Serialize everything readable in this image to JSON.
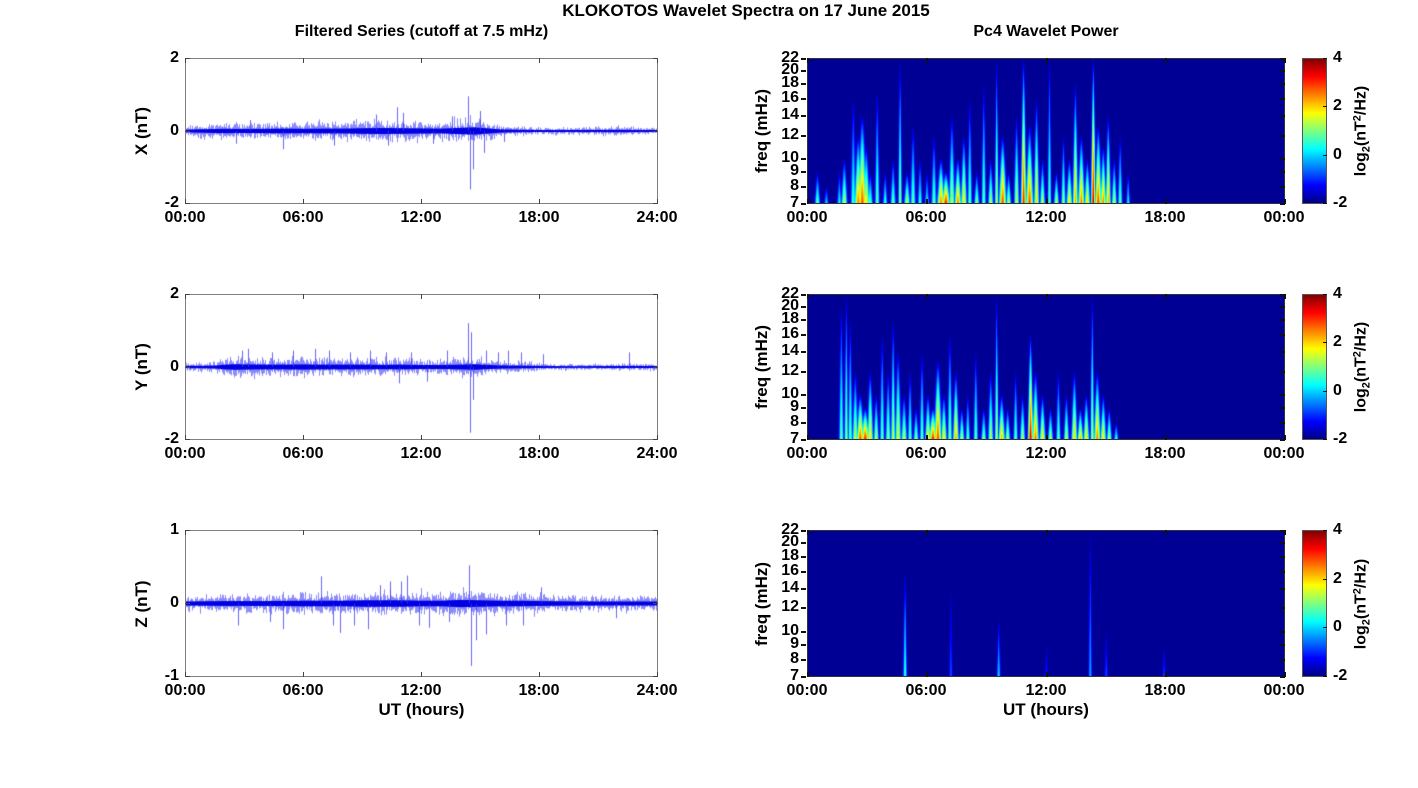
{
  "figure": {
    "title": "KLOKOTOS Wavelet Spectra on 17 June 2015",
    "left_title": "Filtered Series (cutoff at 7.5 mHz)",
    "right_title": "Pc4 Wavelet Power",
    "xlabel": "UT (hours)",
    "background": "#ffffff",
    "line_color": "#0000ee",
    "spectrogram_background": "#000090",
    "colorbar": {
      "tick_values": [
        4,
        2,
        0,
        -2
      ],
      "range": [
        -2,
        4
      ],
      "label_parts": {
        "base1": "log",
        "sub": "2",
        "base2": "(nT",
        "sup": "2",
        "base3": "/Hz)"
      }
    }
  },
  "chart_data": [
    {
      "id": "series_x",
      "type": "line",
      "title": "Filtered Series (cutoff at 7.5 mHz)",
      "ylabel": "X (nT)",
      "xlabel": "",
      "ylim": [
        -2,
        2
      ],
      "yticks": [
        2,
        0,
        -2
      ],
      "x_hours": [
        0,
        24
      ],
      "xticks": [
        "00:00",
        "06:00",
        "12:00",
        "18:00",
        "24:00"
      ],
      "color": "#0000ee",
      "seed": 11,
      "noise_envelope": [
        [
          0,
          0.06
        ],
        [
          0.5,
          0.08
        ],
        [
          1,
          0.09
        ],
        [
          2,
          0.11
        ],
        [
          3,
          0.1
        ],
        [
          4,
          0.11
        ],
        [
          5,
          0.12
        ],
        [
          6,
          0.11
        ],
        [
          7,
          0.12
        ],
        [
          8,
          0.12
        ],
        [
          9,
          0.14
        ],
        [
          10,
          0.15
        ],
        [
          11,
          0.14
        ],
        [
          12,
          0.13
        ],
        [
          13,
          0.12
        ],
        [
          14,
          0.16
        ],
        [
          14.7,
          0.18
        ],
        [
          15.5,
          0.12
        ],
        [
          16,
          0.08
        ],
        [
          17,
          0.06
        ],
        [
          18,
          0.05
        ],
        [
          20,
          0.05
        ],
        [
          22,
          0.06
        ],
        [
          23,
          0.05
        ],
        [
          24,
          0.05
        ]
      ],
      "spikes": [
        [
          2.6,
          -0.35
        ],
        [
          3.3,
          0.3
        ],
        [
          5.0,
          -0.5
        ],
        [
          7.6,
          -0.4
        ],
        [
          9.7,
          0.45
        ],
        [
          10.3,
          -0.4
        ],
        [
          10.8,
          0.65
        ],
        [
          11.1,
          0.5
        ],
        [
          12.6,
          -0.35
        ],
        [
          13.6,
          0.4
        ],
        [
          14.4,
          0.95
        ],
        [
          14.5,
          -1.6
        ],
        [
          14.65,
          -1.05
        ],
        [
          15.0,
          0.55
        ],
        [
          15.2,
          -0.6
        ],
        [
          16.2,
          -0.3
        ]
      ]
    },
    {
      "id": "series_y",
      "type": "line",
      "title": "",
      "ylabel": "Y (nT)",
      "xlabel": "",
      "ylim": [
        -2,
        2
      ],
      "yticks": [
        2,
        0,
        -2
      ],
      "x_hours": [
        0,
        24
      ],
      "xticks": [
        "00:00",
        "06:00",
        "12:00",
        "18:00",
        "24:00"
      ],
      "color": "#0000ee",
      "seed": 23,
      "noise_envelope": [
        [
          0,
          0.06
        ],
        [
          1,
          0.06
        ],
        [
          1.6,
          0.08
        ],
        [
          2,
          0.12
        ],
        [
          2.5,
          0.14
        ],
        [
          3,
          0.13
        ],
        [
          4,
          0.12
        ],
        [
          5,
          0.12
        ],
        [
          6,
          0.13
        ],
        [
          7,
          0.12
        ],
        [
          8,
          0.12
        ],
        [
          9,
          0.12
        ],
        [
          10,
          0.11
        ],
        [
          11,
          0.12
        ],
        [
          12,
          0.1
        ],
        [
          13,
          0.1
        ],
        [
          14,
          0.12
        ],
        [
          14.7,
          0.14
        ],
        [
          15.5,
          0.1
        ],
        [
          16,
          0.08
        ],
        [
          17,
          0.07
        ],
        [
          18,
          0.05
        ],
        [
          20,
          0.04
        ],
        [
          22,
          0.05
        ],
        [
          24,
          0.05
        ]
      ],
      "spikes": [
        [
          2.9,
          0.45
        ],
        [
          3.2,
          0.5
        ],
        [
          4.4,
          0.4
        ],
        [
          5.5,
          0.45
        ],
        [
          6.6,
          0.5
        ],
        [
          7.3,
          0.45
        ],
        [
          8.4,
          0.4
        ],
        [
          9.4,
          0.45
        ],
        [
          10.2,
          0.4
        ],
        [
          10.9,
          -0.45
        ],
        [
          11.5,
          0.4
        ],
        [
          12.3,
          -0.4
        ],
        [
          13.3,
          0.45
        ],
        [
          14.4,
          1.2
        ],
        [
          14.5,
          -1.8
        ],
        [
          14.55,
          0.95
        ],
        [
          14.65,
          -0.9
        ],
        [
          15.3,
          0.45
        ],
        [
          15.9,
          0.4
        ],
        [
          16.4,
          0.45
        ],
        [
          17.1,
          0.4
        ],
        [
          18.2,
          0.35
        ],
        [
          22.6,
          0.4
        ]
      ]
    },
    {
      "id": "series_z",
      "type": "line",
      "title": "",
      "ylabel": "Z (nT)",
      "xlabel": "UT (hours)",
      "ylim": [
        -1,
        1
      ],
      "yticks": [
        1,
        0,
        -1
      ],
      "x_hours": [
        0,
        24
      ],
      "xticks": [
        "00:00",
        "06:00",
        "12:00",
        "18:00",
        "24:00"
      ],
      "color": "#0000ee",
      "seed": 37,
      "noise_envelope": [
        [
          0,
          0.05
        ],
        [
          2,
          0.06
        ],
        [
          4,
          0.06
        ],
        [
          6,
          0.07
        ],
        [
          7,
          0.07
        ],
        [
          8,
          0.07
        ],
        [
          9,
          0.08
        ],
        [
          10,
          0.08
        ],
        [
          11,
          0.08
        ],
        [
          12,
          0.07
        ],
        [
          13,
          0.07
        ],
        [
          14,
          0.09
        ],
        [
          15,
          0.08
        ],
        [
          16,
          0.07
        ],
        [
          17,
          0.07
        ],
        [
          18,
          0.06
        ],
        [
          20,
          0.05
        ],
        [
          22,
          0.05
        ],
        [
          24,
          0.05
        ]
      ],
      "spikes": [
        [
          2.7,
          -0.3
        ],
        [
          4.3,
          -0.25
        ],
        [
          5.0,
          -0.35
        ],
        [
          6.9,
          0.37
        ],
        [
          7.5,
          -0.3
        ],
        [
          7.9,
          -0.4
        ],
        [
          8.6,
          -0.3
        ],
        [
          9.3,
          -0.35
        ],
        [
          9.9,
          0.25
        ],
        [
          10.4,
          0.3
        ],
        [
          11.0,
          0.3
        ],
        [
          11.3,
          0.38
        ],
        [
          11.9,
          -0.3
        ],
        [
          12.4,
          -0.33
        ],
        [
          13.4,
          -0.25
        ],
        [
          14.45,
          0.52
        ],
        [
          14.55,
          -0.85
        ],
        [
          14.8,
          -0.5
        ],
        [
          15.3,
          -0.42
        ],
        [
          16.3,
          -0.3
        ],
        [
          17.2,
          -0.3
        ],
        [
          18.1,
          0.22
        ],
        [
          21.9,
          -0.2
        ]
      ]
    },
    {
      "id": "wavelet_x",
      "type": "heatmap",
      "title": "Pc4 Wavelet Power",
      "ylabel": "freq (mHz)",
      "xlabel": "",
      "ylim": [
        7,
        22
      ],
      "yscale": "log",
      "yticks": [
        22,
        20,
        18,
        16,
        14,
        12,
        10,
        9,
        8,
        7
      ],
      "x_hours": [
        0,
        24
      ],
      "xticks": [
        "00:00",
        "06:00",
        "12:00",
        "18:00",
        "00:00"
      ],
      "value_label": "log2(nT2/Hz)",
      "value_range": [
        -2,
        4
      ],
      "colormap": "jet",
      "events_format": [
        "t_hours",
        "f_top_mHz",
        "intensity_0to1",
        "sigma_hours"
      ],
      "events": [
        [
          0.5,
          9,
          0.5,
          0.07
        ],
        [
          0.95,
          8,
          0.35,
          0.06
        ],
        [
          1.6,
          9,
          0.4,
          0.06
        ],
        [
          1.85,
          10,
          0.6,
          0.08
        ],
        [
          2.3,
          16,
          0.45,
          0.07
        ],
        [
          2.55,
          12,
          0.8,
          0.1
        ],
        [
          2.75,
          14,
          0.85,
          0.11
        ],
        [
          2.95,
          11,
          0.7,
          0.09
        ],
        [
          3.15,
          9,
          0.5,
          0.07
        ],
        [
          3.5,
          17,
          0.5,
          0.06
        ],
        [
          3.9,
          9,
          0.45,
          0.06
        ],
        [
          4.3,
          10,
          0.5,
          0.07
        ],
        [
          4.65,
          22,
          0.55,
          0.05
        ],
        [
          5.0,
          9,
          0.6,
          0.08
        ],
        [
          5.3,
          13,
          0.5,
          0.07
        ],
        [
          5.65,
          10,
          0.45,
          0.06
        ],
        [
          6.0,
          9,
          0.4,
          0.06
        ],
        [
          6.35,
          12,
          0.5,
          0.07
        ],
        [
          6.7,
          10,
          0.8,
          0.1
        ],
        [
          6.95,
          9,
          0.9,
          0.11
        ],
        [
          7.25,
          14,
          0.6,
          0.08
        ],
        [
          7.55,
          10,
          0.8,
          0.09
        ],
        [
          7.85,
          12,
          0.7,
          0.08
        ],
        [
          8.15,
          16,
          0.5,
          0.06
        ],
        [
          8.5,
          9,
          0.55,
          0.07
        ],
        [
          8.85,
          18,
          0.5,
          0.06
        ],
        [
          9.2,
          10,
          0.6,
          0.07
        ],
        [
          9.5,
          22,
          0.6,
          0.05
        ],
        [
          9.8,
          12,
          0.85,
          0.1
        ],
        [
          10.1,
          9,
          0.6,
          0.07
        ],
        [
          10.5,
          14,
          0.6,
          0.07
        ],
        [
          10.85,
          22,
          0.9,
          0.07
        ],
        [
          11.15,
          13,
          0.85,
          0.1
        ],
        [
          11.5,
          16,
          0.7,
          0.07
        ],
        [
          11.8,
          10,
          0.6,
          0.07
        ],
        [
          12.15,
          22,
          0.5,
          0.05
        ],
        [
          12.5,
          9,
          0.6,
          0.07
        ],
        [
          12.85,
          12,
          0.55,
          0.06
        ],
        [
          13.15,
          10,
          0.7,
          0.08
        ],
        [
          13.45,
          18,
          0.75,
          0.07
        ],
        [
          13.75,
          12,
          0.8,
          0.09
        ],
        [
          14.05,
          10,
          0.7,
          0.08
        ],
        [
          14.35,
          22,
          0.97,
          0.06
        ],
        [
          14.6,
          13,
          0.85,
          0.09
        ],
        [
          14.85,
          11,
          0.8,
          0.08
        ],
        [
          15.1,
          14,
          0.75,
          0.07
        ],
        [
          15.4,
          10,
          0.6,
          0.07
        ],
        [
          15.7,
          12,
          0.5,
          0.06
        ],
        [
          16.1,
          9,
          0.4,
          0.05
        ]
      ]
    },
    {
      "id": "wavelet_y",
      "type": "heatmap",
      "title": "",
      "ylabel": "freq (mHz)",
      "xlabel": "",
      "ylim": [
        7,
        22
      ],
      "yscale": "log",
      "yticks": [
        22,
        20,
        18,
        16,
        14,
        12,
        10,
        9,
        8,
        7
      ],
      "x_hours": [
        0,
        24
      ],
      "xticks": [
        "00:00",
        "06:00",
        "12:00",
        "18:00",
        "00:00"
      ],
      "value_label": "log2(nT2/Hz)",
      "value_range": [
        -2,
        4
      ],
      "colormap": "jet",
      "events_format": [
        "t_hours",
        "f_top_mHz",
        "intensity_0to1",
        "sigma_hours"
      ],
      "events": [
        [
          1.7,
          20,
          0.5,
          0.06
        ],
        [
          1.95,
          22,
          0.55,
          0.05
        ],
        [
          2.15,
          18,
          0.5,
          0.06
        ],
        [
          2.4,
          12,
          0.6,
          0.08
        ],
        [
          2.65,
          10,
          0.85,
          0.1
        ],
        [
          2.9,
          9,
          0.9,
          0.11
        ],
        [
          3.15,
          12,
          0.7,
          0.08
        ],
        [
          3.45,
          10,
          0.6,
          0.07
        ],
        [
          3.75,
          16,
          0.5,
          0.06
        ],
        [
          4.05,
          12,
          0.55,
          0.07
        ],
        [
          4.3,
          18,
          0.6,
          0.06
        ],
        [
          4.55,
          14,
          0.65,
          0.08
        ],
        [
          4.85,
          10,
          0.6,
          0.08
        ],
        [
          5.15,
          12,
          0.5,
          0.06
        ],
        [
          5.45,
          9,
          0.55,
          0.07
        ],
        [
          5.75,
          14,
          0.5,
          0.06
        ],
        [
          6.05,
          10,
          0.7,
          0.08
        ],
        [
          6.3,
          9,
          0.9,
          0.11
        ],
        [
          6.55,
          13,
          0.85,
          0.1
        ],
        [
          6.85,
          10,
          0.7,
          0.08
        ],
        [
          7.15,
          16,
          0.55,
          0.06
        ],
        [
          7.45,
          12,
          0.75,
          0.08
        ],
        [
          7.75,
          9,
          0.6,
          0.07
        ],
        [
          8.05,
          10,
          0.5,
          0.06
        ],
        [
          8.45,
          14,
          0.5,
          0.06
        ],
        [
          8.85,
          9,
          0.55,
          0.07
        ],
        [
          9.2,
          12,
          0.6,
          0.07
        ],
        [
          9.5,
          22,
          0.6,
          0.05
        ],
        [
          9.75,
          10,
          0.75,
          0.09
        ],
        [
          10.05,
          9,
          0.6,
          0.07
        ],
        [
          10.45,
          12,
          0.5,
          0.06
        ],
        [
          10.8,
          10,
          0.6,
          0.07
        ],
        [
          11.2,
          16,
          0.95,
          0.07
        ],
        [
          11.45,
          12,
          0.8,
          0.09
        ],
        [
          11.8,
          10,
          0.7,
          0.08
        ],
        [
          12.2,
          9,
          0.6,
          0.07
        ],
        [
          12.6,
          12,
          0.5,
          0.06
        ],
        [
          13.0,
          10,
          0.6,
          0.07
        ],
        [
          13.4,
          12,
          0.7,
          0.08
        ],
        [
          13.7,
          9,
          0.75,
          0.08
        ],
        [
          14.0,
          10,
          0.7,
          0.08
        ],
        [
          14.3,
          22,
          0.6,
          0.05
        ],
        [
          14.55,
          12,
          0.8,
          0.09
        ],
        [
          14.85,
          10,
          0.7,
          0.08
        ],
        [
          15.15,
          9,
          0.6,
          0.07
        ],
        [
          15.5,
          8,
          0.45,
          0.06
        ]
      ]
    },
    {
      "id": "wavelet_z",
      "type": "heatmap",
      "title": "",
      "ylabel": "freq (mHz)",
      "xlabel": "UT (hours)",
      "ylim": [
        7,
        22
      ],
      "yscale": "log",
      "yticks": [
        22,
        20,
        18,
        16,
        14,
        12,
        10,
        9,
        8,
        7
      ],
      "x_hours": [
        0,
        24
      ],
      "xticks": [
        "00:00",
        "06:00",
        "12:00",
        "18:00",
        "00:00"
      ],
      "value_label": "log2(nT2/Hz)",
      "value_range": [
        -2,
        4
      ],
      "colormap": "jet",
      "events_format": [
        "t_hours",
        "f_top_mHz",
        "intensity_0to1",
        "sigma_hours"
      ],
      "events": [
        [
          4.9,
          16,
          0.45,
          0.05
        ],
        [
          7.2,
          14,
          0.2,
          0.04
        ],
        [
          9.6,
          11,
          0.35,
          0.05
        ],
        [
          12.0,
          9,
          0.15,
          0.04
        ],
        [
          14.2,
          22,
          0.3,
          0.04
        ],
        [
          15.0,
          10,
          0.2,
          0.04
        ],
        [
          17.9,
          9,
          0.18,
          0.04
        ]
      ]
    }
  ]
}
